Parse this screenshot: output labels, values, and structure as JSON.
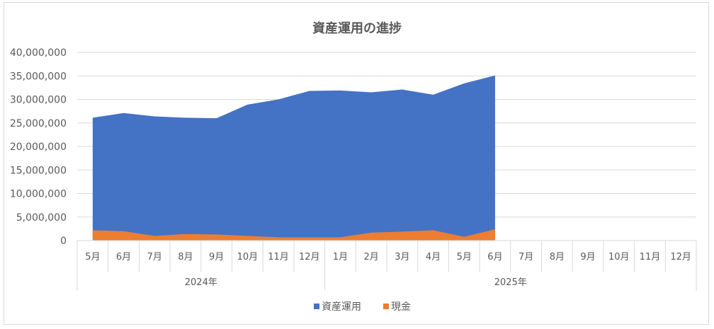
{
  "chart_data": {
    "type": "area",
    "title": "資産運用の進捗",
    "categories": [
      "5月",
      "6月",
      "7月",
      "8月",
      "9月",
      "10月",
      "11月",
      "12月",
      "1月",
      "2月",
      "3月",
      "4月",
      "5月",
      "6月",
      "7月",
      "8月",
      "9月",
      "10月",
      "11月",
      "12月"
    ],
    "year_groups": [
      {
        "label": "2024年",
        "start": 0,
        "end": 7
      },
      {
        "label": "2025年",
        "start": 8,
        "end": 19
      }
    ],
    "series": [
      {
        "name": "現金",
        "color": "#ed7d31",
        "values": [
          2200000,
          2000000,
          1000000,
          1400000,
          1300000,
          1000000,
          700000,
          700000,
          700000,
          1700000,
          1900000,
          2200000,
          800000,
          2400000,
          null,
          null,
          null,
          null,
          null,
          null
        ]
      },
      {
        "name": "資産運用",
        "color": "#4472c4",
        "values": [
          26100000,
          27100000,
          26400000,
          26100000,
          26000000,
          28900000,
          30000000,
          31800000,
          31900000,
          31500000,
          32100000,
          31000000,
          33400000,
          35100000,
          null,
          null,
          null,
          null,
          null,
          null
        ]
      }
    ],
    "stacking": "none",
    "y_ticks": [
      "0",
      "5,000,000",
      "10,000,000",
      "15,000,000",
      "20,000,000",
      "25,000,000",
      "30,000,000",
      "35,000,000",
      "40,000,000"
    ],
    "ylim": [
      0,
      40000000
    ],
    "grid": true,
    "legend_position": "bottom",
    "legend_order": [
      "資産運用",
      "現金"
    ]
  }
}
